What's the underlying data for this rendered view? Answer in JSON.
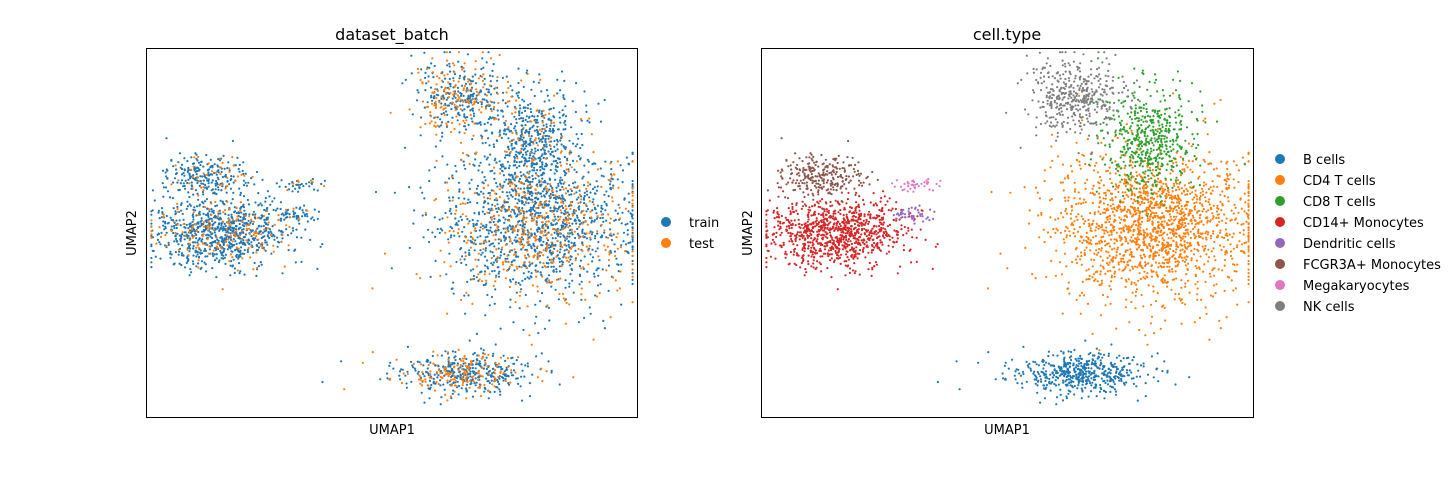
{
  "chart_data": [
    {
      "type": "scatter",
      "title": "dataset_batch",
      "xlabel": "UMAP1",
      "ylabel": "UMAP2",
      "xlim": [
        0,
        100
      ],
      "ylim": [
        0,
        100
      ],
      "grid": false,
      "legend_position": "right",
      "series": [
        {
          "name": "train",
          "color": "#1f77b4"
        },
        {
          "name": "test",
          "color": "#ff7f0e"
        }
      ],
      "clusters": [
        {
          "label": "B cells",
          "x": 64,
          "y": 12,
          "sx": 7,
          "sy": 2.8,
          "n": 520,
          "test_frac": 0.3
        },
        {
          "label": "CD4 T cells",
          "x": 80,
          "y": 52,
          "sx": 10,
          "sy": 10,
          "n": 1700,
          "test_frac": 0.28
        },
        {
          "label": "CD8 T cells",
          "x": 79,
          "y": 75,
          "sx": 4.5,
          "sy": 7,
          "n": 520,
          "test_frac": 0.1
        },
        {
          "label": "CD14+ Monocytes",
          "x": 15,
          "y": 50,
          "sx": 7,
          "sy": 4.5,
          "n": 950,
          "test_frac": 0.15
        },
        {
          "label": "Dendritic cells",
          "x": 31,
          "y": 55,
          "sx": 2.5,
          "sy": 1,
          "n": 45,
          "test_frac": 0.1
        },
        {
          "label": "FCGR3A+ Monocytes",
          "x": 12,
          "y": 65,
          "sx": 4,
          "sy": 3,
          "n": 260,
          "test_frac": 0.15
        },
        {
          "label": "Megakaryocytes",
          "x": 31,
          "y": 63,
          "sx": 2.3,
          "sy": 0.9,
          "n": 40,
          "test_frac": 0.2
        },
        {
          "label": "NK cells",
          "x": 64,
          "y": 87,
          "sx": 5,
          "sy": 5,
          "n": 420,
          "test_frac": 0.35
        }
      ]
    },
    {
      "type": "scatter",
      "title": "cell.type",
      "xlabel": "UMAP1",
      "ylabel": "UMAP2",
      "xlim": [
        0,
        100
      ],
      "ylim": [
        0,
        100
      ],
      "grid": false,
      "legend_position": "right",
      "series": [
        {
          "name": "B cells",
          "color": "#1f77b4"
        },
        {
          "name": "CD4 T cells",
          "color": "#ff7f0e"
        },
        {
          "name": "CD8 T cells",
          "color": "#2ca02c"
        },
        {
          "name": "CD14+ Monocytes",
          "color": "#d62728"
        },
        {
          "name": "Dendritic cells",
          "color": "#9467bd"
        },
        {
          "name": "FCGR3A+ Monocytes",
          "color": "#8c564b"
        },
        {
          "name": "Megakaryocytes",
          "color": "#e377c2"
        },
        {
          "name": "NK cells",
          "color": "#7f7f7f"
        }
      ]
    }
  ]
}
